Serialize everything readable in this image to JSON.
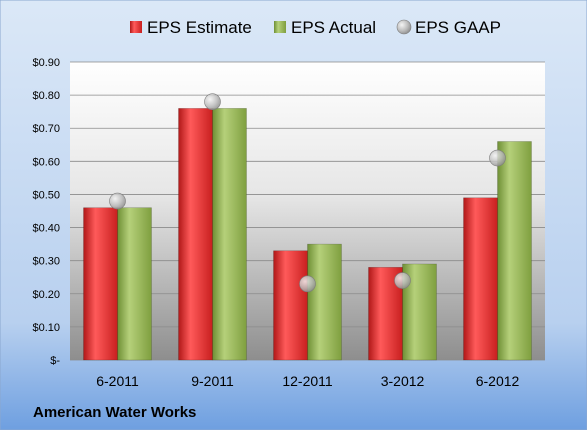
{
  "chart_data": {
    "type": "bar",
    "categories": [
      "6-2011",
      "9-2011",
      "12-2011",
      "3-2012",
      "6-2012"
    ],
    "series": [
      {
        "name": "EPS Estimate",
        "kind": "bar",
        "color": "#d42a2a",
        "values": [
          0.46,
          0.76,
          0.33,
          0.28,
          0.49
        ]
      },
      {
        "name": "EPS Actual",
        "kind": "bar",
        "color": "#8cb04a",
        "values": [
          0.46,
          0.76,
          0.35,
          0.29,
          0.66
        ]
      },
      {
        "name": "EPS GAAP",
        "kind": "marker",
        "color": "#b8b8b8",
        "values": [
          0.48,
          0.78,
          0.23,
          0.24,
          0.61
        ]
      }
    ],
    "ylim": [
      0,
      0.9
    ],
    "yticks": [
      0,
      0.1,
      0.2,
      0.3,
      0.4,
      0.5,
      0.6,
      0.7,
      0.8,
      0.9
    ],
    "ytick_labels": [
      "$-",
      "$0.10",
      "$0.20",
      "$0.30",
      "$0.40",
      "$0.50",
      "$0.60",
      "$0.70",
      "$0.80",
      "$0.90"
    ],
    "grid": true,
    "legend": "top",
    "footer": "American Water Works"
  }
}
